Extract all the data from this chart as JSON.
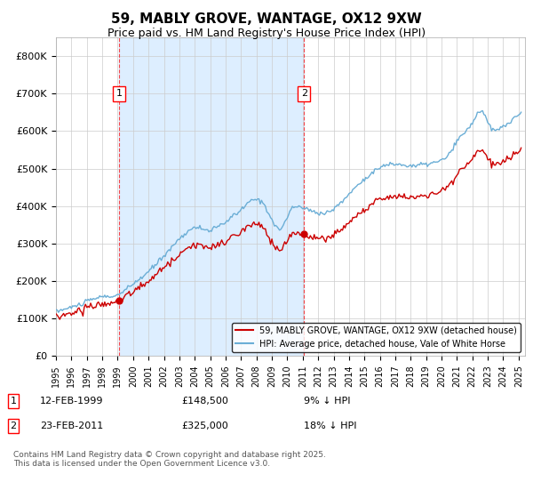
{
  "title": "59, MABLY GROVE, WANTAGE, OX12 9XW",
  "subtitle": "Price paid vs. HM Land Registry's House Price Index (HPI)",
  "ylim": [
    0,
    850000
  ],
  "ytick_values": [
    0,
    100000,
    200000,
    300000,
    400000,
    500000,
    600000,
    700000,
    800000
  ],
  "sale1_price": 148500,
  "sale1_label": "1",
  "sale1_text_date": "12-FEB-1999",
  "sale1_text_price": "£148,500",
  "sale1_text_hpi": "9% ↓ HPI",
  "sale2_price": 325000,
  "sale2_label": "2",
  "sale2_text_date": "23-FEB-2011",
  "sale2_text_price": "£325,000",
  "sale2_text_hpi": "18% ↓ HPI",
  "legend_entry1": "59, MABLY GROVE, WANTAGE, OX12 9XW (detached house)",
  "legend_entry2": "HPI: Average price, detached house, Vale of White Horse",
  "hpi_color": "#6baed6",
  "price_color": "#cc0000",
  "shade_color": "#ddeeff",
  "footer_text": "Contains HM Land Registry data © Crown copyright and database right 2025.\nThis data is licensed under the Open Government Licence v3.0.",
  "bg_color": "#ffffff",
  "grid_color": "#cccccc"
}
